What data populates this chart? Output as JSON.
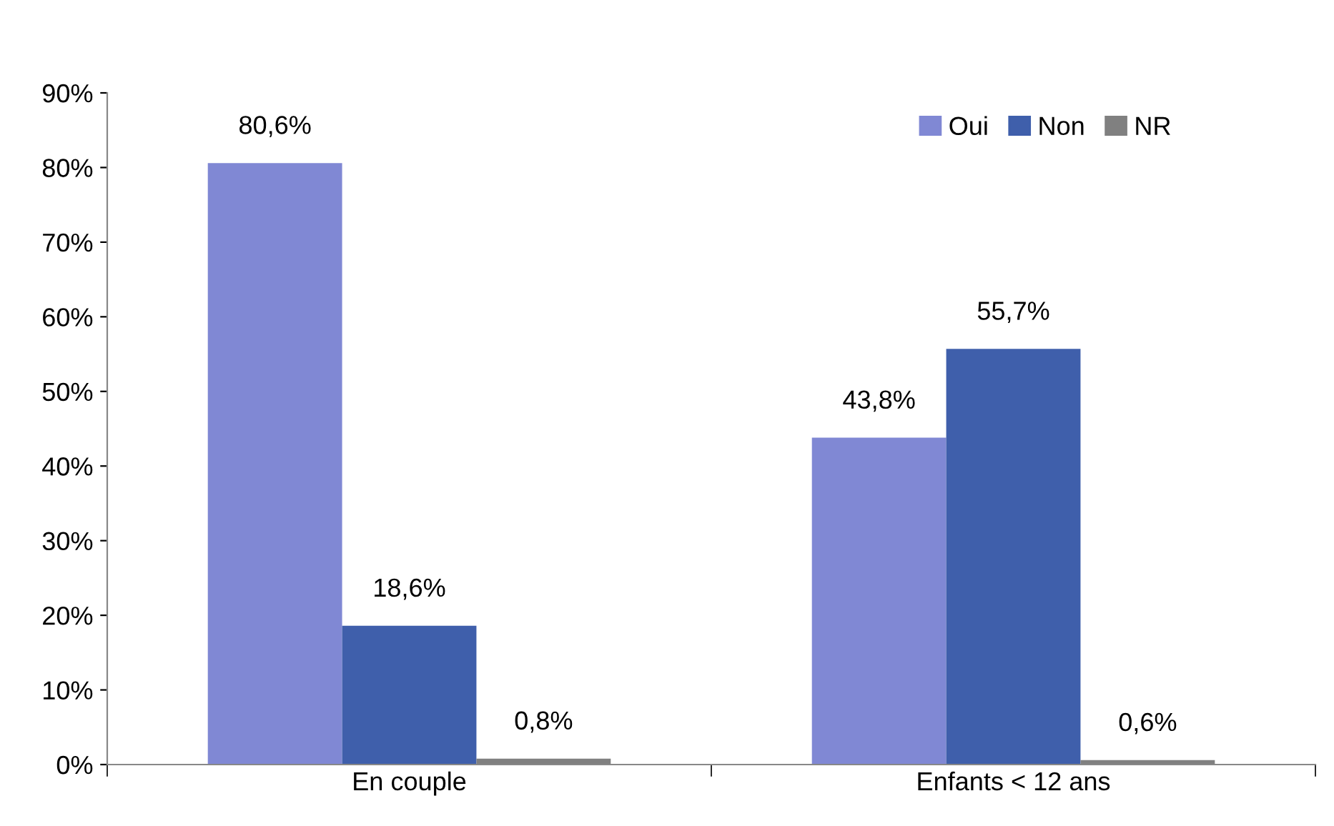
{
  "chart_data": {
    "type": "bar",
    "categories": [
      "En couple",
      "Enfants < 12 ans"
    ],
    "series": [
      {
        "name": "Oui",
        "color": "#8088d4",
        "values": [
          80.6,
          43.8
        ],
        "value_labels": [
          "80,6%",
          "43,8%"
        ]
      },
      {
        "name": "Non",
        "color": "#3f5fab",
        "values": [
          18.6,
          55.7
        ],
        "value_labels": [
          "18,6%",
          "55,7%"
        ]
      },
      {
        "name": "NR",
        "color": "#808080",
        "values": [
          0.8,
          0.6
        ],
        "value_labels": [
          "0,8%",
          "0,6%"
        ]
      }
    ],
    "ylim": [
      0,
      90
    ],
    "yticks": [
      {
        "value": 0,
        "label": "0%"
      },
      {
        "value": 10,
        "label": "10%"
      },
      {
        "value": 20,
        "label": "20%"
      },
      {
        "value": 30,
        "label": "30%"
      },
      {
        "value": 40,
        "label": "40%"
      },
      {
        "value": 50,
        "label": "50%"
      },
      {
        "value": 60,
        "label": "60%"
      },
      {
        "value": 70,
        "label": "70%"
      },
      {
        "value": 80,
        "label": "80%"
      },
      {
        "value": 90,
        "label": "90%"
      }
    ],
    "grid": false,
    "legend": "top right"
  }
}
